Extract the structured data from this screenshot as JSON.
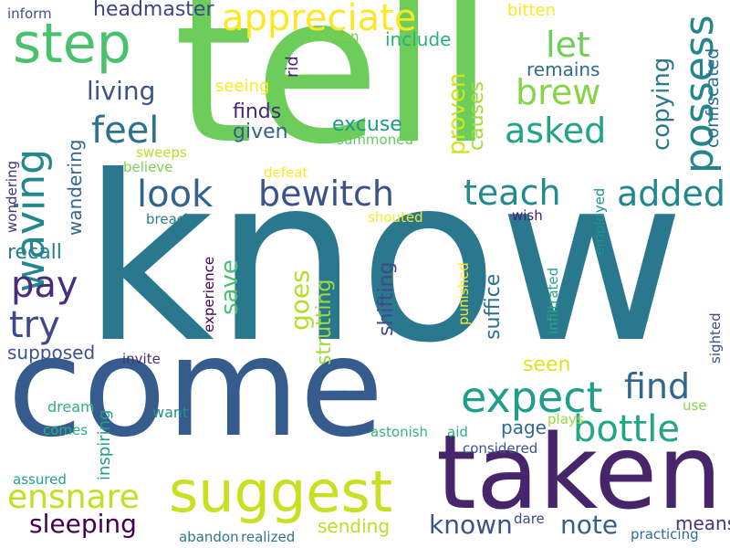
{
  "words": [
    {
      "text": "know",
      "color": "#2a788e"
    },
    {
      "text": "tell",
      "color": "#6ccd5a"
    },
    {
      "text": "come",
      "color": "#365c8d"
    },
    {
      "text": "taken",
      "color": "#46256b"
    },
    {
      "text": "suggest",
      "color": "#c8e020"
    },
    {
      "text": "appreciate",
      "color": "#fde725"
    },
    {
      "text": "step",
      "color": "#4ac16d"
    },
    {
      "text": "expect",
      "color": "#1f9e89"
    },
    {
      "text": "waving",
      "color": "#23888e"
    },
    {
      "text": "possess",
      "color": "#25858e"
    },
    {
      "text": "bottle",
      "color": "#22a785"
    },
    {
      "text": "ensnare",
      "color": "#c2df23"
    },
    {
      "text": "let",
      "color": "#6ece58"
    },
    {
      "text": "brew",
      "color": "#86d549"
    },
    {
      "text": "asked",
      "color": "#20a386"
    },
    {
      "text": "feel",
      "color": "#2c728e"
    },
    {
      "text": "look",
      "color": "#33638d"
    },
    {
      "text": "bewitch",
      "color": "#3b528b"
    },
    {
      "text": "teach",
      "color": "#238a8d"
    },
    {
      "text": "added",
      "color": "#24878e"
    },
    {
      "text": "find",
      "color": "#31668e"
    },
    {
      "text": "pay",
      "color": "#472d7b"
    },
    {
      "text": "try",
      "color": "#3e4a89"
    },
    {
      "text": "sleeping",
      "color": "#440154"
    },
    {
      "text": "note",
      "color": "#355f8d"
    },
    {
      "text": "known",
      "color": "#3b528b"
    },
    {
      "text": "living",
      "color": "#3b528b"
    },
    {
      "text": "copying",
      "color": "#2a788e"
    },
    {
      "text": "confiscated",
      "color": "#2d708e"
    },
    {
      "text": "headmaster",
      "color": "#414487"
    },
    {
      "text": "include",
      "color": "#29af7f"
    },
    {
      "text": "proven",
      "color": "#d2e21b"
    },
    {
      "text": "causes",
      "color": "#a5db36"
    },
    {
      "text": "remains",
      "color": "#2f6c8e"
    },
    {
      "text": "finds",
      "color": "#482878"
    },
    {
      "text": "given",
      "color": "#33638d"
    },
    {
      "text": "excuse",
      "color": "#1f9a8a"
    },
    {
      "text": "goes",
      "color": "#b5de2b"
    },
    {
      "text": "strutting",
      "color": "#a0da39"
    },
    {
      "text": "shifting",
      "color": "#3e4a89"
    },
    {
      "text": "suffice",
      "color": "#2c728e"
    },
    {
      "text": "save",
      "color": "#4ac16d"
    },
    {
      "text": "recall",
      "color": "#277f8e"
    },
    {
      "text": "wandering",
      "color": "#30688e"
    },
    {
      "text": "supposed",
      "color": "#3b528b"
    },
    {
      "text": "page",
      "color": "#31688e"
    },
    {
      "text": "means",
      "color": "#46337e"
    },
    {
      "text": "sending",
      "color": "#bddf26"
    },
    {
      "text": "seeing",
      "color": "#fde725"
    },
    {
      "text": "rid",
      "color": "#481f70"
    },
    {
      "text": "chosen",
      "color": "#7ad151"
    },
    {
      "text": "bitten",
      "color": "#fde725"
    },
    {
      "text": "inform",
      "color": "#3b528b"
    },
    {
      "text": "summoned",
      "color": "#63cb5f"
    },
    {
      "text": "sweeps",
      "color": "#b8de29"
    },
    {
      "text": "believe",
      "color": "#7ad151"
    },
    {
      "text": "defeat",
      "color": "#fde725"
    },
    {
      "text": "wondering",
      "color": "#46327e"
    },
    {
      "text": "breach",
      "color": "#26828e"
    },
    {
      "text": "shouted",
      "color": "#fde725"
    },
    {
      "text": "wish",
      "color": "#481b6d"
    },
    {
      "text": "employed",
      "color": "#21918c"
    },
    {
      "text": "punished",
      "color": "#fde725"
    },
    {
      "text": "infiltrated",
      "color": "#22a884"
    },
    {
      "text": "experience",
      "color": "#440154"
    },
    {
      "text": "invite",
      "color": "#472c7a"
    },
    {
      "text": "seen",
      "color": "#dde318"
    },
    {
      "text": "sighted",
      "color": "#3e4a89"
    },
    {
      "text": "use",
      "color": "#84d44b"
    },
    {
      "text": "dream",
      "color": "#2eb37c"
    },
    {
      "text": "want",
      "color": "#21918c"
    },
    {
      "text": "inspiring",
      "color": "#1fa088"
    },
    {
      "text": "comes",
      "color": "#29af7f"
    },
    {
      "text": "astonish",
      "color": "#35b779"
    },
    {
      "text": "aid",
      "color": "#29af7f"
    },
    {
      "text": "plays",
      "color": "#95d840"
    },
    {
      "text": "considered",
      "color": "#3b528b"
    },
    {
      "text": "assured",
      "color": "#20a386"
    },
    {
      "text": "abandon",
      "color": "#2a788e"
    },
    {
      "text": "realized",
      "color": "#2a788e"
    },
    {
      "text": "dare",
      "color": "#3e4a89"
    },
    {
      "text": "practicing",
      "color": "#2c728e"
    }
  ]
}
